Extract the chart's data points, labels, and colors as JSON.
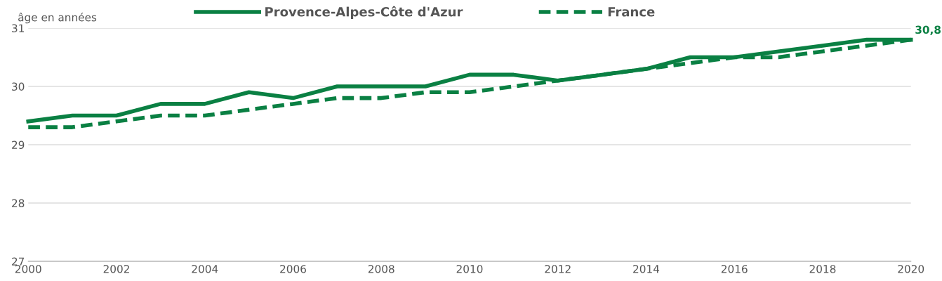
{
  "chart_data": {
    "type": "line",
    "ylabel": "âge en années",
    "x": [
      2000,
      2001,
      2002,
      2003,
      2004,
      2005,
      2006,
      2007,
      2008,
      2009,
      2010,
      2011,
      2012,
      2013,
      2014,
      2015,
      2016,
      2017,
      2018,
      2019,
      2020
    ],
    "series": [
      {
        "name": "Provence-Alpes-Côte d'Azur",
        "color": "#0a8043",
        "line_style": "solid",
        "values": [
          29.4,
          29.5,
          29.5,
          29.7,
          29.7,
          29.9,
          29.8,
          30.0,
          30.0,
          30.0,
          30.2,
          30.2,
          30.1,
          30.2,
          30.3,
          30.5,
          30.5,
          30.6,
          30.7,
          30.8,
          30.8
        ]
      },
      {
        "name": "France",
        "color": "#0a8043",
        "line_style": "dashed",
        "values": [
          29.3,
          29.3,
          29.4,
          29.5,
          29.5,
          29.6,
          29.7,
          29.8,
          29.8,
          29.9,
          29.9,
          30.0,
          30.1,
          30.2,
          30.3,
          30.4,
          30.5,
          30.5,
          30.6,
          30.7,
          30.8
        ]
      }
    ],
    "annotations": [
      {
        "text": "30,8",
        "x": 2020,
        "y": 30.8
      }
    ],
    "xlim": [
      2000,
      2020
    ],
    "xticks": [
      2000,
      2002,
      2004,
      2006,
      2008,
      2010,
      2012,
      2014,
      2016,
      2018,
      2020
    ],
    "ylim": [
      27,
      31
    ],
    "yticks": [
      27,
      28,
      29,
      30,
      31
    ],
    "grid": "y",
    "legend": "top",
    "marker": "none"
  }
}
